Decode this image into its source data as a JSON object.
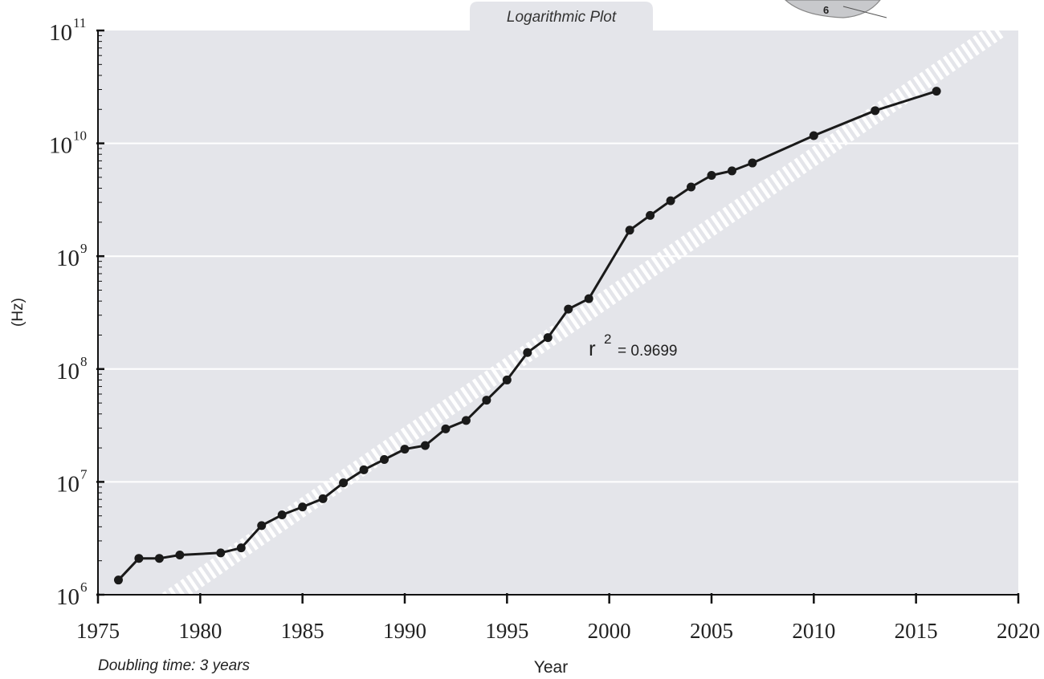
{
  "chart_data": {
    "type": "line",
    "title": "Logarithmic Plot",
    "xlabel": "Year",
    "ylabel": "(Hz)",
    "yscale": "log",
    "xlim": [
      1975,
      2020
    ],
    "ylim": [
      1000000,
      100000000000
    ],
    "x_ticks": [
      "1975",
      "1980",
      "1985",
      "1990",
      "1995",
      "2000",
      "2005",
      "2010",
      "2015",
      "2020"
    ],
    "y_ticks": [
      {
        "base": "10",
        "exp": "6",
        "value": 1000000
      },
      {
        "base": "10",
        "exp": "7",
        "value": 10000000
      },
      {
        "base": "10",
        "exp": "8",
        "value": 100000000
      },
      {
        "base": "10",
        "exp": "9",
        "value": 1000000000
      },
      {
        "base": "10",
        "exp": "10",
        "value": 10000000000
      },
      {
        "base": "10",
        "exp": "11",
        "value": 100000000000
      }
    ],
    "grid": "horizontal",
    "series": [
      {
        "x": [
          1976,
          1977,
          1978,
          1979,
          1981,
          1982,
          1983,
          1984,
          1985,
          1986,
          1987,
          1988,
          1989,
          1990,
          1991,
          1992,
          1993,
          1994,
          1995,
          1996,
          1997,
          1998,
          1999,
          2001,
          2002,
          2003,
          2004,
          2005,
          2006,
          2007,
          2010,
          2013,
          2016
        ],
        "values": [
          1350000,
          2100000,
          2100000,
          2250000,
          2350000,
          2600000,
          4100000,
          5100000,
          6000000,
          7100000,
          9800000,
          12800000,
          15800000,
          19500000,
          21000000,
          29500000,
          35000000,
          53000000,
          80000000,
          140000000,
          190000000,
          340000000,
          420000000,
          1700000000,
          2300000000,
          3100000000,
          4100000000,
          5200000000,
          5700000000,
          6700000000,
          11700000000,
          19500000000,
          29000000000
        ],
        "color": "#1a1a1a"
      }
    ],
    "trendline": {
      "x": [
        1977,
        2019
      ],
      "values": [
        600000,
        100000000000
      ],
      "style": "hatched",
      "color": "#ffffff"
    },
    "annotations": {
      "r2_label": "r",
      "r2_exp": "2",
      "r2_value": "= 0.9699",
      "doubling": "Doubling time: 3 years"
    },
    "colors": {
      "plot_bg": "#e4e5ea",
      "grid": "#ffffff",
      "line": "#1a1a1a",
      "axis": "#111111"
    }
  },
  "header_icon": "clock-icon"
}
